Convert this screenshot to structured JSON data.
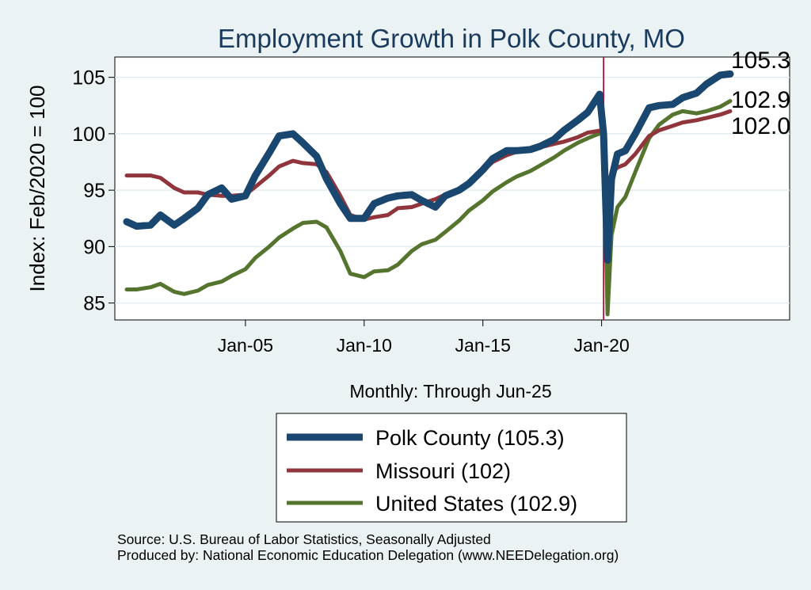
{
  "chart_data": {
    "type": "line",
    "title": "Employment Growth in Polk  County, MO",
    "xlabel": "Monthly: Through Jun-25",
    "ylabel": "Index: Feb/2020 = 100",
    "xlim": [
      "2000-01",
      "2025-06"
    ],
    "ylim": [
      83.5,
      106.8
    ],
    "yticks": [
      85,
      90,
      95,
      100,
      105
    ],
    "xticks": [
      "Jan-05",
      "Jan-10",
      "Jan-15",
      "Jan-20"
    ],
    "grid": "horizontal",
    "reference_line": "2020-02",
    "legend_position": "bottom",
    "end_labels": [
      "105.3",
      "102.9",
      "102.0"
    ],
    "series": [
      {
        "name": "Polk  County (105.3)",
        "color": "#1a476f",
        "points": [
          [
            "2000-01",
            92.2
          ],
          [
            "2000-06",
            91.8
          ],
          [
            "2001-01",
            91.9
          ],
          [
            "2001-06",
            92.8
          ],
          [
            "2002-01",
            91.9
          ],
          [
            "2002-06",
            92.5
          ],
          [
            "2003-01",
            93.4
          ],
          [
            "2003-06",
            94.6
          ],
          [
            "2004-01",
            95.2
          ],
          [
            "2004-06",
            94.2
          ],
          [
            "2005-01",
            94.5
          ],
          [
            "2005-06",
            96.3
          ],
          [
            "2006-01",
            98.3
          ],
          [
            "2006-06",
            99.8
          ],
          [
            "2007-01",
            100.0
          ],
          [
            "2007-06",
            99.2
          ],
          [
            "2008-01",
            98.0
          ],
          [
            "2008-06",
            96.0
          ],
          [
            "2009-01",
            93.8
          ],
          [
            "2009-06",
            92.5
          ],
          [
            "2010-01",
            92.5
          ],
          [
            "2010-06",
            93.8
          ],
          [
            "2011-01",
            94.3
          ],
          [
            "2011-06",
            94.5
          ],
          [
            "2012-01",
            94.6
          ],
          [
            "2012-06",
            94.1
          ],
          [
            "2013-01",
            93.5
          ],
          [
            "2013-06",
            94.5
          ],
          [
            "2014-01",
            95.0
          ],
          [
            "2014-06",
            95.6
          ],
          [
            "2015-01",
            96.8
          ],
          [
            "2015-06",
            97.8
          ],
          [
            "2016-01",
            98.5
          ],
          [
            "2016-06",
            98.5
          ],
          [
            "2017-01",
            98.6
          ],
          [
            "2017-06",
            98.9
          ],
          [
            "2018-01",
            99.5
          ],
          [
            "2018-06",
            100.3
          ],
          [
            "2019-01",
            101.2
          ],
          [
            "2019-06",
            101.9
          ],
          [
            "2019-12",
            103.5
          ],
          [
            "2020-02",
            100.0
          ],
          [
            "2020-04",
            88.8
          ],
          [
            "2020-06",
            96.0
          ],
          [
            "2020-09",
            98.2
          ],
          [
            "2021-01",
            98.5
          ],
          [
            "2021-06",
            100.0
          ],
          [
            "2022-01",
            102.3
          ],
          [
            "2022-06",
            102.5
          ],
          [
            "2023-01",
            102.6
          ],
          [
            "2023-06",
            103.2
          ],
          [
            "2024-01",
            103.6
          ],
          [
            "2024-06",
            104.4
          ],
          [
            "2025-01",
            105.2
          ],
          [
            "2025-06",
            105.3
          ]
        ]
      },
      {
        "name": "Missouri (102)",
        "color": "#90353b",
        "points": [
          [
            "2000-01",
            96.3
          ],
          [
            "2000-06",
            96.3
          ],
          [
            "2001-01",
            96.3
          ],
          [
            "2001-06",
            96.1
          ],
          [
            "2002-01",
            95.2
          ],
          [
            "2002-06",
            94.8
          ],
          [
            "2003-01",
            94.8
          ],
          [
            "2003-06",
            94.6
          ],
          [
            "2004-01",
            94.5
          ],
          [
            "2004-06",
            94.5
          ],
          [
            "2005-01",
            94.6
          ],
          [
            "2005-06",
            95.3
          ],
          [
            "2006-01",
            96.3
          ],
          [
            "2006-06",
            97.1
          ],
          [
            "2007-01",
            97.6
          ],
          [
            "2007-06",
            97.4
          ],
          [
            "2008-01",
            97.3
          ],
          [
            "2008-06",
            96.6
          ],
          [
            "2009-01",
            94.5
          ],
          [
            "2009-06",
            92.8
          ],
          [
            "2010-01",
            92.4
          ],
          [
            "2010-06",
            92.6
          ],
          [
            "2011-01",
            92.8
          ],
          [
            "2011-06",
            93.4
          ],
          [
            "2012-01",
            93.5
          ],
          [
            "2012-06",
            93.8
          ],
          [
            "2013-01",
            94.2
          ],
          [
            "2013-06",
            94.6
          ],
          [
            "2014-01",
            94.9
          ],
          [
            "2014-06",
            95.6
          ],
          [
            "2015-01",
            96.7
          ],
          [
            "2015-06",
            97.5
          ],
          [
            "2016-01",
            98.1
          ],
          [
            "2016-06",
            98.4
          ],
          [
            "2017-01",
            98.6
          ],
          [
            "2017-06",
            98.8
          ],
          [
            "2018-01",
            99.1
          ],
          [
            "2018-06",
            99.3
          ],
          [
            "2019-01",
            99.7
          ],
          [
            "2019-06",
            100.1
          ],
          [
            "2020-01",
            100.3
          ],
          [
            "2020-02",
            100.0
          ],
          [
            "2020-04",
            90.0
          ],
          [
            "2020-06",
            96.5
          ],
          [
            "2020-09",
            97.0
          ],
          [
            "2021-01",
            97.3
          ],
          [
            "2021-06",
            98.2
          ],
          [
            "2022-01",
            99.8
          ],
          [
            "2022-06",
            100.3
          ],
          [
            "2023-01",
            100.7
          ],
          [
            "2023-06",
            101.0
          ],
          [
            "2024-01",
            101.2
          ],
          [
            "2024-06",
            101.4
          ],
          [
            "2025-01",
            101.7
          ],
          [
            "2025-06",
            102.0
          ]
        ]
      },
      {
        "name": "United States (102.9)",
        "color": "#55752f",
        "points": [
          [
            "2000-01",
            86.2
          ],
          [
            "2000-06",
            86.2
          ],
          [
            "2001-01",
            86.4
          ],
          [
            "2001-06",
            86.7
          ],
          [
            "2002-01",
            86.0
          ],
          [
            "2002-06",
            85.8
          ],
          [
            "2003-01",
            86.1
          ],
          [
            "2003-06",
            86.6
          ],
          [
            "2004-01",
            86.9
          ],
          [
            "2004-06",
            87.4
          ],
          [
            "2005-01",
            88.0
          ],
          [
            "2005-06",
            89.0
          ],
          [
            "2006-01",
            90.0
          ],
          [
            "2006-06",
            90.8
          ],
          [
            "2007-01",
            91.6
          ],
          [
            "2007-06",
            92.1
          ],
          [
            "2008-01",
            92.2
          ],
          [
            "2008-06",
            91.7
          ],
          [
            "2009-01",
            89.6
          ],
          [
            "2009-06",
            87.6
          ],
          [
            "2010-01",
            87.3
          ],
          [
            "2010-06",
            87.8
          ],
          [
            "2011-01",
            87.9
          ],
          [
            "2011-06",
            88.4
          ],
          [
            "2012-01",
            89.6
          ],
          [
            "2012-06",
            90.2
          ],
          [
            "2013-01",
            90.6
          ],
          [
            "2013-06",
            91.3
          ],
          [
            "2014-01",
            92.3
          ],
          [
            "2014-06",
            93.2
          ],
          [
            "2015-01",
            94.1
          ],
          [
            "2015-06",
            94.9
          ],
          [
            "2016-01",
            95.7
          ],
          [
            "2016-06",
            96.2
          ],
          [
            "2017-01",
            96.7
          ],
          [
            "2017-06",
            97.2
          ],
          [
            "2018-01",
            97.9
          ],
          [
            "2018-06",
            98.5
          ],
          [
            "2019-01",
            99.2
          ],
          [
            "2019-06",
            99.6
          ],
          [
            "2020-01",
            100.1
          ],
          [
            "2020-02",
            100.0
          ],
          [
            "2020-04",
            84.0
          ],
          [
            "2020-06",
            91.0
          ],
          [
            "2020-09",
            93.5
          ],
          [
            "2021-01",
            94.4
          ],
          [
            "2021-06",
            96.6
          ],
          [
            "2022-01",
            99.6
          ],
          [
            "2022-06",
            100.8
          ],
          [
            "2023-01",
            101.7
          ],
          [
            "2023-06",
            102.0
          ],
          [
            "2024-01",
            101.8
          ],
          [
            "2024-06",
            102.0
          ],
          [
            "2025-01",
            102.4
          ],
          [
            "2025-06",
            102.9
          ]
        ]
      }
    ]
  },
  "footer": {
    "source": "Source: U.S. Bureau of Labor Statistics, Seasonally Adjusted",
    "produced": "Produced by: National Economic Education Delegation (www.NEEDelegation.org)"
  }
}
